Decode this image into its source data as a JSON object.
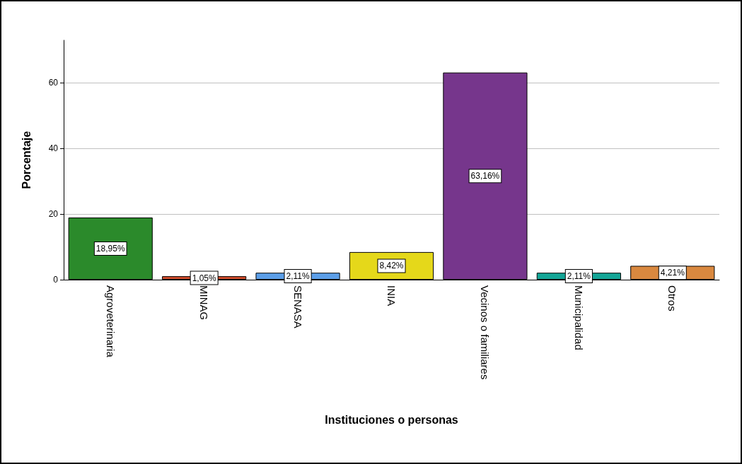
{
  "chart_data": {
    "type": "bar",
    "xlabel": "Instituciones o personas",
    "ylabel": "Porcentaje",
    "categories": [
      "Agroveterinaria",
      "MINAG",
      "SENASA",
      "INIA",
      "Vecinos o familiares",
      "Municipalidad",
      "Otros"
    ],
    "values": [
      18.95,
      1.05,
      2.11,
      8.42,
      63.16,
      2.11,
      4.21
    ],
    "value_labels": [
      "18,95%",
      "1,05%",
      "2,11%",
      "8,42%",
      "63,16%",
      "2,11%",
      "4,21%"
    ],
    "colors": [
      "#2b8a2b",
      "#d24b2a",
      "#5b9ee8",
      "#e5d81a",
      "#76368c",
      "#13a596",
      "#d9883f"
    ],
    "ylim": [
      0,
      73
    ],
    "yticks": [
      0,
      20,
      40,
      60
    ],
    "grid": "y"
  }
}
